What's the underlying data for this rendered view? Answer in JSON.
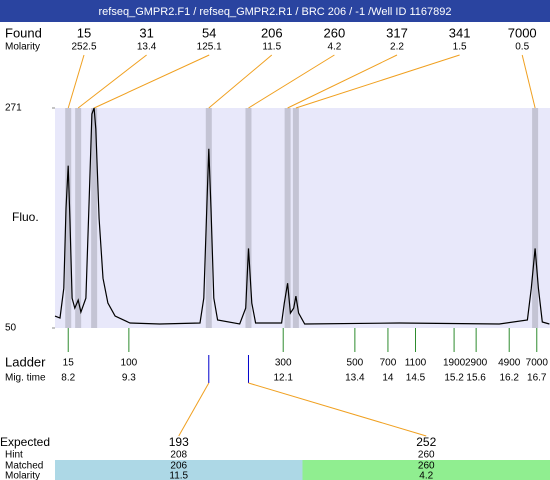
{
  "chart_data": {
    "type": "electropherogram",
    "title": "refseq_GMPR2.F1 / refseq_GMPR2.R1 / BRC 206 / -1 /Well ID 1167892",
    "y_label": "Fluo.",
    "ylim": [
      50,
      271
    ],
    "yticks": [
      50,
      271
    ],
    "xlim": [
      7.96,
      16.94
    ],
    "found_label": "Found",
    "found_molarity_label": "Molarity",
    "found": {
      "sizes": [
        15,
        31,
        54,
        206,
        260,
        317,
        341,
        7000
      ],
      "molarity": [
        252.5,
        13.4,
        125.1,
        11.5,
        4.2,
        2.2,
        1.5,
        0.5
      ],
      "mig_time": [
        8.2,
        8.38,
        8.67,
        10.75,
        11.47,
        12.18,
        12.33,
        16.67
      ]
    },
    "ladder_label": "Ladder",
    "mig_time_label": "Mig. time",
    "ladder": {
      "sizes": [
        15,
        100,
        300,
        500,
        700,
        1100,
        1900,
        2900,
        4900,
        7000
      ],
      "mig_time": [
        8.2,
        9.3,
        12.1,
        13.4,
        14,
        14.5,
        15.2,
        15.6,
        16.2,
        16.7
      ]
    },
    "trace": {
      "color": "#000000",
      "x": [
        7.96,
        8.05,
        8.12,
        8.16,
        8.2,
        8.23,
        8.27,
        8.32,
        8.38,
        8.43,
        8.52,
        8.58,
        8.63,
        8.67,
        8.7,
        8.76,
        8.83,
        8.92,
        9.05,
        9.32,
        9.86,
        10.59,
        10.66,
        10.72,
        10.75,
        10.79,
        10.84,
        10.91,
        11.31,
        11.42,
        11.47,
        11.53,
        11.6,
        12.07,
        12.12,
        12.18,
        12.23,
        12.29,
        12.33,
        12.38,
        12.49,
        14.21,
        16.02,
        16.53,
        16.6,
        16.67,
        16.73,
        16.8,
        16.93
      ],
      "values": [
        62,
        60,
        90,
        170,
        213,
        160,
        80,
        70,
        78,
        66,
        80,
        180,
        265,
        271,
        250,
        160,
        100,
        75,
        62,
        55,
        54,
        55,
        80,
        180,
        230,
        170,
        80,
        58,
        54,
        70,
        130,
        75,
        55,
        55,
        75,
        95,
        65,
        70,
        82,
        65,
        54,
        55,
        54,
        58,
        90,
        130,
        90,
        56,
        54
      ]
    },
    "expected": {
      "row_labels": [
        "Expected",
        "Hint",
        "Matched",
        "Molarity"
      ],
      "columns": [
        {
          "expected": 193,
          "hint": 208,
          "matched": 206,
          "molarity": 11.5,
          "color": "#add8e6"
        },
        {
          "expected": 252,
          "hint": 260,
          "matched": 260,
          "molarity": 4.2,
          "color": "#90ee90"
        }
      ]
    }
  }
}
